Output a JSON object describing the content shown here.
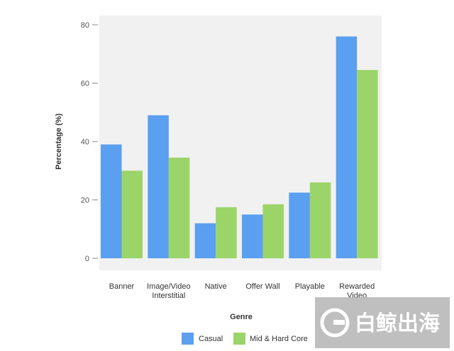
{
  "chart_data": {
    "type": "bar",
    "xlabel": "Genre",
    "ylabel": "Percentage (%)",
    "ylim": [
      0,
      80
    ],
    "yticks": [
      0,
      20,
      40,
      60,
      80
    ],
    "grid": false,
    "legend": "bottom",
    "categories": [
      [
        "Banner"
      ],
      [
        "Image/Video",
        "Interstitial"
      ],
      [
        "Native"
      ],
      [
        "Offer Wall"
      ],
      [
        "Playable"
      ],
      [
        "Rewarded",
        "Video"
      ]
    ],
    "series": [
      {
        "name": "Casual",
        "color": "#5b9ff0",
        "values": [
          39,
          49,
          12,
          15,
          22.5,
          76
        ]
      },
      {
        "name": "Mid & Hard Core",
        "color": "#9bd468",
        "values": [
          30,
          34.5,
          17.5,
          18.5,
          26,
          64.5
        ]
      }
    ]
  },
  "watermark": {
    "text": "白鲸出海",
    "icon": "whale-logo-icon"
  }
}
